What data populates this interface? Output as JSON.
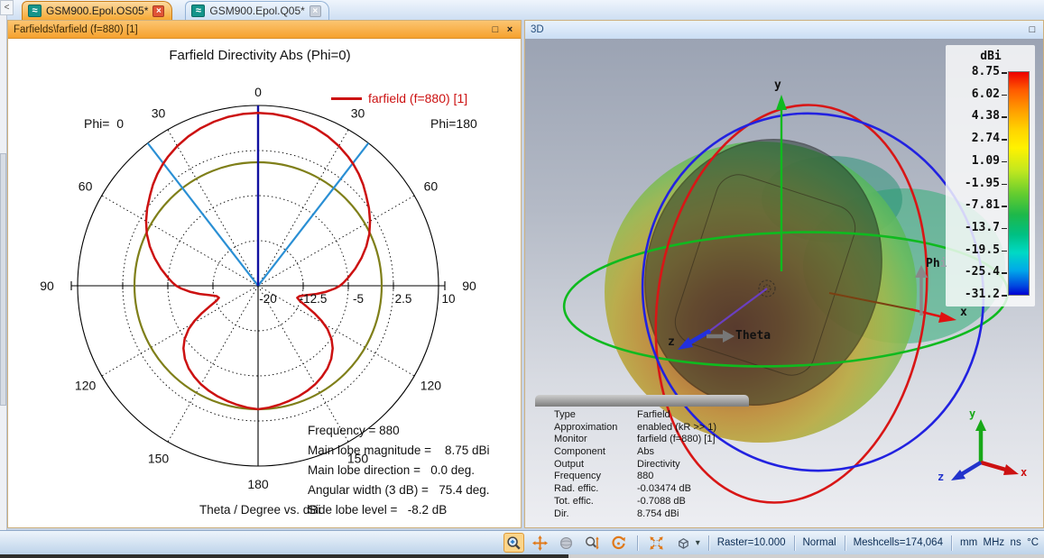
{
  "icons": {
    "tab_wave": "≈",
    "close": "×",
    "maximize": "□",
    "scroll_left": "<",
    "dropdown": "▾"
  },
  "tabs": [
    {
      "label": "GSM900.Epol.OS05*",
      "active": true
    },
    {
      "label": "GSM900.Epol.Q05*",
      "active": false
    }
  ],
  "left_window": {
    "title": "Farfields\\farfield (f=880) [1]"
  },
  "right_window": {
    "title": "3D"
  },
  "chart_data": {
    "type": "polar",
    "title": "Farfield Directivity Abs (Phi=0)",
    "legend": "farfield (f=880) [1]",
    "left_label": "Phi=  0",
    "right_label": "Phi=180",
    "axis_label": "Theta / Degree vs. dBi",
    "r_min": -20,
    "r_max": 10,
    "radial_ticks": [
      "-20",
      "-12.5",
      "-5",
      "2.5",
      "10"
    ],
    "angle_ticks_deg": [
      0,
      30,
      60,
      90,
      120,
      150,
      180
    ],
    "frequency": 880,
    "main_lobe_magnitude_dbi": 8.75,
    "main_lobe_direction_deg": 0.0,
    "angular_width_3db_deg": 75.4,
    "side_lobe_level_db": -8.2,
    "side_lobe_circle_dbi": 0.55,
    "annotations": [
      "Frequency = 880",
      "Main lobe magnitude =    8.75 dBi",
      "Main lobe direction =   0.0 deg.",
      "Angular width (3 dB) =   75.4 deg.",
      "Side lobe level =   -8.2 dB"
    ],
    "series": [
      {
        "name": "farfield (f=880) [1]",
        "color": "#cc1111",
        "points": [
          [
            0,
            8.75
          ],
          [
            5,
            8.7
          ],
          [
            10,
            8.54
          ],
          [
            15,
            8.27
          ],
          [
            20,
            7.91
          ],
          [
            25,
            7.43
          ],
          [
            30,
            6.85
          ],
          [
            35,
            6.16
          ],
          [
            38,
            5.7
          ],
          [
            42,
            5.02
          ],
          [
            46,
            4.27
          ],
          [
            50,
            3.44
          ],
          [
            55,
            2.5
          ],
          [
            60,
            1.5
          ],
          [
            65,
            0.4
          ],
          [
            70,
            -0.85
          ],
          [
            75,
            -2.2
          ],
          [
            80,
            -3.6
          ],
          [
            85,
            -5.0
          ],
          [
            88,
            -5.8
          ],
          [
            90,
            -6.4
          ],
          [
            92,
            -7.2
          ],
          [
            95,
            -8.6
          ],
          [
            98,
            -10.2
          ],
          [
            101,
            -11.8
          ],
          [
            104,
            -12.9
          ],
          [
            107,
            -13.2
          ],
          [
            110,
            -12.6
          ],
          [
            113,
            -11.3
          ],
          [
            116,
            -9.6
          ],
          [
            119,
            -7.9
          ],
          [
            122,
            -6.4
          ],
          [
            126,
            -4.9
          ],
          [
            130,
            -3.8
          ],
          [
            135,
            -2.8
          ],
          [
            140,
            -2.05
          ],
          [
            145,
            -1.5
          ],
          [
            150,
            -1.05
          ],
          [
            155,
            -0.7
          ],
          [
            160,
            -0.4
          ],
          [
            165,
            -0.15
          ],
          [
            170,
            0.1
          ],
          [
            175,
            0.35
          ],
          [
            180,
            0.55
          ]
        ]
      }
    ]
  },
  "scene3d": {
    "y_axis_label": "y",
    "x_axis_label": "x",
    "z_axis_label": "z",
    "theta_label": "Theta",
    "phi_label_main": "Ph",
    "phi_label_tail": "i",
    "triad": {
      "x": "x",
      "y": "y",
      "z": "z"
    }
  },
  "colorbar": {
    "title": "dBi",
    "ticks": [
      "8.75",
      "6.02",
      "4.38",
      "2.74",
      "1.09",
      "-1.95",
      "-7.81",
      "-13.7",
      "-19.5",
      "-25.4",
      "-31.2"
    ]
  },
  "info_table": {
    "rows": [
      [
        "Type",
        "Farfield"
      ],
      [
        "Approximation",
        "enabled (kR >> 1)"
      ],
      [
        "Monitor",
        "farfield (f=880) [1]"
      ],
      [
        "Component",
        "Abs"
      ],
      [
        "Output",
        "Directivity"
      ],
      [
        "Frequency",
        "880"
      ],
      [
        "Rad. effic.",
        "-0.03474 dB"
      ],
      [
        "Tot. effic.",
        "-0.7088 dB"
      ],
      [
        "Dir.",
        "8.754 dBi"
      ]
    ]
  },
  "status_bar": {
    "raster": "Raster=10.000",
    "mode": "Normal",
    "meshcells": "Meshcells=174,064",
    "units": "mm  MHz  ns  °C",
    "tools": [
      "zoom-select",
      "pan",
      "rotate-sphere",
      "zoom-dynamic",
      "rotate-view",
      "fit-view",
      "view-cube"
    ]
  },
  "colors": {
    "farfield_curve": "#cc1111",
    "main_lobe_line": "#1111a0",
    "angular_width_lines": "#2a8fd4",
    "side_lobe_circle": "#7f7f19",
    "titlebar_orange": "#f6a12e",
    "colorbar_top": "#ee0000",
    "colorbar_bottom": "#0000d2"
  }
}
